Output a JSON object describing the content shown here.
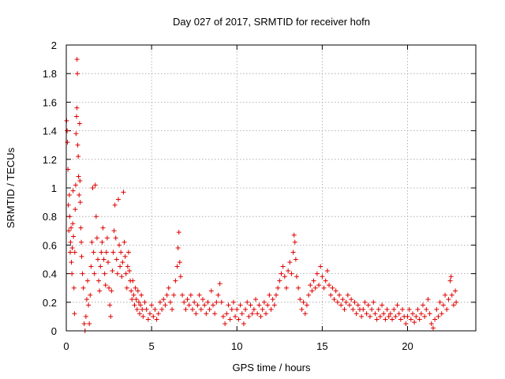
{
  "chart_data": {
    "type": "scatter",
    "title": "Day 027 of 2017, SRMTID for receiver hofn",
    "xlabel": "GPS time / hours",
    "ylabel": "SRMTID / TECUs",
    "xlim": [
      0,
      24
    ],
    "ylim": [
      0,
      2
    ],
    "xticks": [
      0,
      5,
      10,
      15,
      20
    ],
    "xtick_labels": [
      "0",
      "5",
      "10",
      "15",
      "20"
    ],
    "yticks": [
      0,
      0.2,
      0.4,
      0.6,
      0.8,
      1,
      1.2,
      1.4,
      1.6,
      1.8,
      2
    ],
    "ytick_labels": [
      "0",
      "0.2",
      "0.4",
      "0.6",
      "0.8",
      "1",
      "1.2",
      "1.4",
      "1.6",
      "1.8",
      "2"
    ],
    "grid": true,
    "marker": "+",
    "color": "#e00000",
    "series": [
      {
        "name": "SRMTID",
        "points": [
          [
            0.02,
            1.47
          ],
          [
            0.05,
            1.4
          ],
          [
            0.07,
            1.32
          ],
          [
            0.1,
            1.13
          ],
          [
            0.12,
            0.88
          ],
          [
            0.15,
            0.7
          ],
          [
            0.18,
            0.95
          ],
          [
            0.2,
            0.8
          ],
          [
            0.23,
            0.55
          ],
          [
            0.25,
            0.62
          ],
          [
            0.28,
            0.72
          ],
          [
            0.3,
            0.48
          ],
          [
            0.33,
            0.4
          ],
          [
            0.35,
            0.58
          ],
          [
            0.38,
            0.75
          ],
          [
            0.4,
            0.98
          ],
          [
            0.42,
            0.66
          ],
          [
            0.45,
            0.3
          ],
          [
            0.48,
            0.12
          ],
          [
            0.5,
            0.55
          ],
          [
            0.52,
            0.85
          ],
          [
            0.55,
            1.02
          ],
          [
            0.57,
            1.38
          ],
          [
            0.6,
            1.5
          ],
          [
            0.62,
            1.56
          ],
          [
            0.63,
            1.9
          ],
          [
            0.65,
            1.8
          ],
          [
            0.67,
            1.3
          ],
          [
            0.7,
            1.22
          ],
          [
            0.72,
            1.08
          ],
          [
            0.75,
            0.95
          ],
          [
            0.78,
            1.45
          ],
          [
            0.8,
            1.05
          ],
          [
            0.82,
            0.9
          ],
          [
            0.85,
            0.72
          ],
          [
            0.88,
            0.62
          ],
          [
            0.9,
            0.52
          ],
          [
            0.95,
            0.4
          ],
          [
            1.0,
            0.3
          ],
          [
            1.05,
            0.05
          ],
          [
            1.1,
            0.0
          ],
          [
            1.15,
            0.1
          ],
          [
            1.2,
            0.22
          ],
          [
            1.25,
            0.35
          ],
          [
            1.3,
            0.18
          ],
          [
            1.35,
            0.05
          ],
          [
            1.4,
            0.25
          ],
          [
            1.45,
            0.45
          ],
          [
            1.5,
            0.62
          ],
          [
            1.55,
            1.0
          ],
          [
            1.6,
            0.55
          ],
          [
            1.65,
            0.4
          ],
          [
            1.7,
            1.02
          ],
          [
            1.75,
            0.8
          ],
          [
            1.8,
            0.65
          ],
          [
            1.85,
            0.5
          ],
          [
            1.9,
            0.35
          ],
          [
            1.95,
            0.28
          ],
          [
            2.0,
            0.45
          ],
          [
            2.05,
            0.55
          ],
          [
            2.1,
            0.62
          ],
          [
            2.15,
            0.72
          ],
          [
            2.2,
            0.5
          ],
          [
            2.25,
            0.4
          ],
          [
            2.3,
            0.32
          ],
          [
            2.35,
            0.55
          ],
          [
            2.4,
            0.65
          ],
          [
            2.45,
            0.48
          ],
          [
            2.5,
            0.3
          ],
          [
            2.55,
            0.18
          ],
          [
            2.6,
            0.1
          ],
          [
            2.65,
            0.28
          ],
          [
            2.7,
            0.42
          ],
          [
            2.75,
            0.55
          ],
          [
            2.8,
            0.7
          ],
          [
            2.85,
            0.88
          ],
          [
            2.9,
            0.65
          ],
          [
            2.95,
            0.5
          ],
          [
            3.0,
            0.4
          ],
          [
            3.05,
            0.92
          ],
          [
            3.1,
            0.6
          ],
          [
            3.15,
            0.45
          ],
          [
            3.2,
            0.55
          ],
          [
            3.25,
            0.38
          ],
          [
            3.3,
            0.48
          ],
          [
            3.35,
            0.97
          ],
          [
            3.4,
            0.62
          ],
          [
            3.45,
            0.52
          ],
          [
            3.5,
            0.4
          ],
          [
            3.55,
            0.3
          ],
          [
            3.6,
            0.45
          ],
          [
            3.65,
            0.55
          ],
          [
            3.7,
            0.42
          ],
          [
            3.75,
            0.35
          ],
          [
            3.8,
            0.28
          ],
          [
            3.85,
            0.22
          ],
          [
            3.9,
            0.35
          ],
          [
            3.95,
            0.25
          ],
          [
            4.0,
            0.18
          ],
          [
            4.05,
            0.3
          ],
          [
            4.1,
            0.22
          ],
          [
            4.15,
            0.15
          ],
          [
            4.2,
            0.28
          ],
          [
            4.25,
            0.2
          ],
          [
            4.3,
            0.12
          ],
          [
            4.35,
            0.18
          ],
          [
            4.4,
            0.25
          ],
          [
            4.45,
            0.15
          ],
          [
            4.5,
            0.1
          ],
          [
            4.6,
            0.2
          ],
          [
            4.7,
            0.15
          ],
          [
            4.8,
            0.08
          ],
          [
            4.9,
            0.12
          ],
          [
            5.0,
            0.18
          ],
          [
            5.1,
            0.1
          ],
          [
            5.2,
            0.15
          ],
          [
            5.3,
            0.08
          ],
          [
            5.4,
            0.12
          ],
          [
            5.5,
            0.2
          ],
          [
            5.6,
            0.15
          ],
          [
            5.7,
            0.22
          ],
          [
            5.8,
            0.18
          ],
          [
            5.9,
            0.25
          ],
          [
            6.0,
            0.3
          ],
          [
            6.1,
            0.2
          ],
          [
            6.2,
            0.15
          ],
          [
            6.3,
            0.25
          ],
          [
            6.4,
            0.35
          ],
          [
            6.5,
            0.45
          ],
          [
            6.55,
            0.58
          ],
          [
            6.6,
            0.69
          ],
          [
            6.65,
            0.48
          ],
          [
            6.7,
            0.38
          ],
          [
            6.8,
            0.25
          ],
          [
            6.9,
            0.2
          ],
          [
            7.0,
            0.15
          ],
          [
            7.1,
            0.22
          ],
          [
            7.2,
            0.18
          ],
          [
            7.3,
            0.25
          ],
          [
            7.4,
            0.15
          ],
          [
            7.5,
            0.2
          ],
          [
            7.6,
            0.12
          ],
          [
            7.7,
            0.18
          ],
          [
            7.8,
            0.25
          ],
          [
            7.9,
            0.15
          ],
          [
            8.0,
            0.22
          ],
          [
            8.1,
            0.18
          ],
          [
            8.2,
            0.12
          ],
          [
            8.3,
            0.2
          ],
          [
            8.4,
            0.15
          ],
          [
            8.5,
            0.28
          ],
          [
            8.6,
            0.18
          ],
          [
            8.7,
            0.12
          ],
          [
            8.8,
            0.2
          ],
          [
            8.9,
            0.25
          ],
          [
            9.0,
            0.33
          ],
          [
            9.1,
            0.2
          ],
          [
            9.2,
            0.1
          ],
          [
            9.3,
            0.05
          ],
          [
            9.4,
            0.12
          ],
          [
            9.5,
            0.18
          ],
          [
            9.6,
            0.08
          ],
          [
            9.7,
            0.15
          ],
          [
            9.8,
            0.2
          ],
          [
            9.9,
            0.1
          ],
          [
            10.0,
            0.15
          ],
          [
            10.1,
            0.08
          ],
          [
            10.2,
            0.18
          ],
          [
            10.3,
            0.12
          ],
          [
            10.4,
            0.05
          ],
          [
            10.5,
            0.15
          ],
          [
            10.6,
            0.2
          ],
          [
            10.7,
            0.1
          ],
          [
            10.8,
            0.18
          ],
          [
            10.9,
            0.12
          ],
          [
            11.0,
            0.15
          ],
          [
            11.1,
            0.22
          ],
          [
            11.2,
            0.12
          ],
          [
            11.3,
            0.18
          ],
          [
            11.4,
            0.1
          ],
          [
            11.5,
            0.15
          ],
          [
            11.6,
            0.2
          ],
          [
            11.7,
            0.12
          ],
          [
            11.8,
            0.18
          ],
          [
            11.9,
            0.25
          ],
          [
            12.0,
            0.15
          ],
          [
            12.1,
            0.22
          ],
          [
            12.2,
            0.18
          ],
          [
            12.3,
            0.25
          ],
          [
            12.4,
            0.3
          ],
          [
            12.5,
            0.35
          ],
          [
            12.6,
            0.4
          ],
          [
            12.7,
            0.45
          ],
          [
            12.8,
            0.38
          ],
          [
            12.9,
            0.3
          ],
          [
            13.0,
            0.42
          ],
          [
            13.1,
            0.48
          ],
          [
            13.2,
            0.4
          ],
          [
            13.3,
            0.55
          ],
          [
            13.35,
            0.67
          ],
          [
            13.4,
            0.62
          ],
          [
            13.45,
            0.5
          ],
          [
            13.5,
            0.38
          ],
          [
            13.6,
            0.3
          ],
          [
            13.7,
            0.22
          ],
          [
            13.8,
            0.15
          ],
          [
            13.9,
            0.2
          ],
          [
            14.0,
            0.12
          ],
          [
            14.1,
            0.18
          ],
          [
            14.2,
            0.25
          ],
          [
            14.3,
            0.32
          ],
          [
            14.4,
            0.28
          ],
          [
            14.5,
            0.35
          ],
          [
            14.6,
            0.3
          ],
          [
            14.7,
            0.4
          ],
          [
            14.8,
            0.32
          ],
          [
            14.9,
            0.45
          ],
          [
            15.0,
            0.38
          ],
          [
            15.1,
            0.3
          ],
          [
            15.2,
            0.35
          ],
          [
            15.3,
            0.42
          ],
          [
            15.4,
            0.32
          ],
          [
            15.5,
            0.25
          ],
          [
            15.6,
            0.3
          ],
          [
            15.7,
            0.22
          ],
          [
            15.8,
            0.28
          ],
          [
            15.9,
            0.2
          ],
          [
            16.0,
            0.25
          ],
          [
            16.1,
            0.18
          ],
          [
            16.2,
            0.22
          ],
          [
            16.3,
            0.15
          ],
          [
            16.4,
            0.2
          ],
          [
            16.5,
            0.25
          ],
          [
            16.6,
            0.18
          ],
          [
            16.7,
            0.22
          ],
          [
            16.8,
            0.15
          ],
          [
            16.9,
            0.2
          ],
          [
            17.0,
            0.12
          ],
          [
            17.1,
            0.18
          ],
          [
            17.2,
            0.15
          ],
          [
            17.3,
            0.1
          ],
          [
            17.4,
            0.15
          ],
          [
            17.5,
            0.2
          ],
          [
            17.6,
            0.12
          ],
          [
            17.7,
            0.18
          ],
          [
            17.8,
            0.1
          ],
          [
            17.9,
            0.15
          ],
          [
            18.0,
            0.2
          ],
          [
            18.1,
            0.12
          ],
          [
            18.2,
            0.08
          ],
          [
            18.3,
            0.15
          ],
          [
            18.4,
            0.1
          ],
          [
            18.5,
            0.18
          ],
          [
            18.6,
            0.12
          ],
          [
            18.7,
            0.08
          ],
          [
            18.8,
            0.15
          ],
          [
            18.9,
            0.1
          ],
          [
            19.0,
            0.12
          ],
          [
            19.1,
            0.08
          ],
          [
            19.2,
            0.15
          ],
          [
            19.3,
            0.1
          ],
          [
            19.4,
            0.18
          ],
          [
            19.5,
            0.12
          ],
          [
            19.6,
            0.08
          ],
          [
            19.7,
            0.15
          ],
          [
            19.8,
            0.1
          ],
          [
            19.9,
            0.05
          ],
          [
            20.0,
            0.1
          ],
          [
            20.1,
            0.15
          ],
          [
            20.2,
            0.08
          ],
          [
            20.3,
            0.12
          ],
          [
            20.4,
            0.06
          ],
          [
            20.5,
            0.1
          ],
          [
            20.6,
            0.15
          ],
          [
            20.7,
            0.08
          ],
          [
            20.8,
            0.12
          ],
          [
            20.9,
            0.18
          ],
          [
            21.0,
            0.1
          ],
          [
            21.1,
            0.15
          ],
          [
            21.2,
            0.22
          ],
          [
            21.3,
            0.12
          ],
          [
            21.4,
            0.05
          ],
          [
            21.5,
            0.02
          ],
          [
            21.6,
            0.08
          ],
          [
            21.7,
            0.15
          ],
          [
            21.8,
            0.1
          ],
          [
            21.9,
            0.2
          ],
          [
            22.0,
            0.12
          ],
          [
            22.1,
            0.18
          ],
          [
            22.2,
            0.25
          ],
          [
            22.3,
            0.15
          ],
          [
            22.4,
            0.22
          ],
          [
            22.5,
            0.35
          ],
          [
            22.55,
            0.38
          ],
          [
            22.6,
            0.25
          ],
          [
            22.7,
            0.18
          ],
          [
            22.8,
            0.28
          ],
          [
            22.85,
            0.2
          ]
        ]
      }
    ]
  }
}
